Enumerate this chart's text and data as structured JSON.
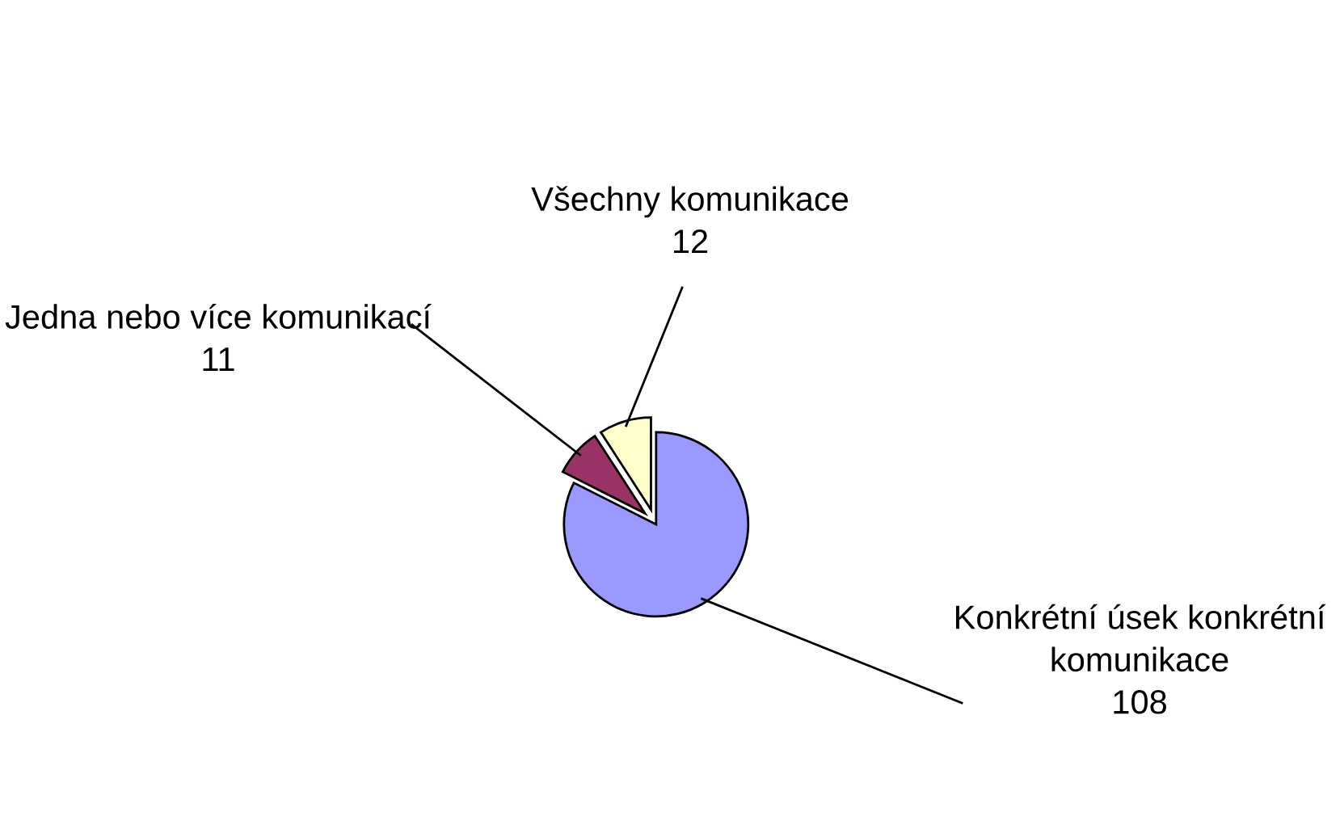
{
  "chart_data": {
    "type": "pie",
    "categories": [
      "Konkrétní úsek konkrétní komunikace",
      "Jedna nebo více komunikací",
      "Všechny komunikace"
    ],
    "values": [
      108,
      11,
      12
    ],
    "colors": [
      "#9999ff",
      "#993366",
      "#ffffcc"
    ],
    "data_labels": true,
    "legend": false
  }
}
